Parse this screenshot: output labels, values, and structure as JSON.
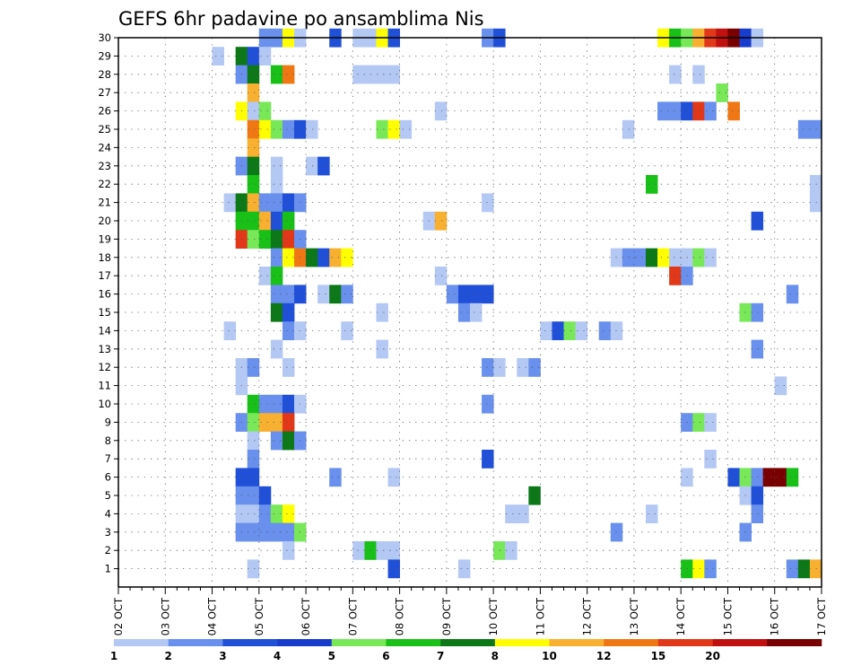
{
  "chart_data": {
    "type": "heatmap",
    "title": "GEFS 6hr padavine po ansamblima Nis",
    "xlabel": "",
    "ylabel": "",
    "x_tick_labels": [
      "02 OCT",
      "03 OCT",
      "04 OCT",
      "05 OCT",
      "06 OCT",
      "07 OCT",
      "08 OCT",
      "09 OCT",
      "10 OCT",
      "11 OCT",
      "12 OCT",
      "13 OCT",
      "14 OCT",
      "15 OCT",
      "16 OCT",
      "17 OCT"
    ],
    "y_tick_labels": [
      "1",
      "2",
      "3",
      "4",
      "5",
      "6",
      "7",
      "8",
      "9",
      "10",
      "11",
      "12",
      "13",
      "14",
      "15",
      "16",
      "17",
      "18",
      "19",
      "20",
      "21",
      "22",
      "23",
      "24",
      "25",
      "26",
      "27",
      "28",
      "29",
      "30"
    ],
    "x_range_steps": [
      0,
      60
    ],
    "y_range": [
      0,
      30
    ],
    "grid": true,
    "legend": "bottom colorbar",
    "colorbar": {
      "colors": [
        "#b4c8f4",
        "#6890ec",
        "#2050d8",
        "#183ccc",
        "#78e858",
        "#18c018",
        "#0c7818",
        "#ffff00",
        "#f8b030",
        "#f07814",
        "#e03818",
        "#c01010",
        "#780000"
      ],
      "labels": [
        "1",
        "2",
        "3",
        "4",
        "5",
        "6",
        "7",
        "8",
        "10",
        "12",
        "15",
        "20"
      ]
    },
    "cells_note": "each cell: [member 0-30, forecast step 0-60 (6h), color index into colorbar.colors]",
    "cells": [
      [
        30,
        12,
        1
      ],
      [
        30,
        13,
        1
      ],
      [
        30,
        14,
        7
      ],
      [
        30,
        15,
        0
      ],
      [
        30,
        18,
        2
      ],
      [
        30,
        20,
        0
      ],
      [
        30,
        21,
        0
      ],
      [
        30,
        22,
        7
      ],
      [
        30,
        23,
        2
      ],
      [
        30,
        31,
        1
      ],
      [
        30,
        32,
        2
      ],
      [
        30,
        46,
        7
      ],
      [
        30,
        47,
        5
      ],
      [
        30,
        48,
        4
      ],
      [
        30,
        49,
        8
      ],
      [
        30,
        50,
        10
      ],
      [
        30,
        51,
        11
      ],
      [
        30,
        52,
        12
      ],
      [
        30,
        53,
        3
      ],
      [
        30,
        54,
        0
      ],
      [
        29,
        8,
        0
      ],
      [
        29,
        10,
        6
      ],
      [
        29,
        11,
        2
      ],
      [
        29,
        12,
        0
      ],
      [
        28,
        10,
        1
      ],
      [
        28,
        11,
        6
      ],
      [
        28,
        13,
        5
      ],
      [
        28,
        14,
        9
      ],
      [
        28,
        20,
        0
      ],
      [
        28,
        21,
        0
      ],
      [
        28,
        22,
        0
      ],
      [
        28,
        23,
        0
      ],
      [
        28,
        47,
        0
      ],
      [
        28,
        49,
        0
      ],
      [
        27,
        11,
        8
      ],
      [
        27,
        51,
        4
      ],
      [
        26,
        10,
        7
      ],
      [
        26,
        11,
        0
      ],
      [
        26,
        12,
        4
      ],
      [
        26,
        27,
        0
      ],
      [
        26,
        46,
        1
      ],
      [
        26,
        47,
        1
      ],
      [
        26,
        48,
        2
      ],
      [
        26,
        49,
        10
      ],
      [
        26,
        50,
        1
      ],
      [
        26,
        52,
        9
      ],
      [
        25,
        11,
        9
      ],
      [
        25,
        12,
        7
      ],
      [
        25,
        13,
        4
      ],
      [
        25,
        14,
        1
      ],
      [
        25,
        15,
        2
      ],
      [
        25,
        16,
        0
      ],
      [
        25,
        22,
        4
      ],
      [
        25,
        23,
        7
      ],
      [
        25,
        24,
        0
      ],
      [
        25,
        43,
        0
      ],
      [
        25,
        58,
        1
      ],
      [
        25,
        59,
        1
      ],
      [
        24,
        11,
        8
      ],
      [
        23,
        10,
        1
      ],
      [
        23,
        11,
        6
      ],
      [
        23,
        13,
        0
      ],
      [
        23,
        16,
        0
      ],
      [
        23,
        17,
        2
      ],
      [
        22,
        11,
        5
      ],
      [
        22,
        13,
        0
      ],
      [
        22,
        45,
        5
      ],
      [
        22,
        59,
        0
      ],
      [
        21,
        9,
        0
      ],
      [
        21,
        10,
        6
      ],
      [
        21,
        11,
        8
      ],
      [
        21,
        12,
        1
      ],
      [
        21,
        13,
        1
      ],
      [
        21,
        14,
        2
      ],
      [
        21,
        15,
        1
      ],
      [
        21,
        31,
        0
      ],
      [
        21,
        59,
        0
      ],
      [
        20,
        10,
        5
      ],
      [
        20,
        11,
        5
      ],
      [
        20,
        12,
        8
      ],
      [
        20,
        13,
        2
      ],
      [
        20,
        14,
        5
      ],
      [
        20,
        26,
        0
      ],
      [
        20,
        27,
        8
      ],
      [
        20,
        54,
        2
      ],
      [
        19,
        10,
        10
      ],
      [
        19,
        11,
        4
      ],
      [
        19,
        12,
        5
      ],
      [
        19,
        13,
        6
      ],
      [
        19,
        14,
        10
      ],
      [
        19,
        15,
        1
      ],
      [
        18,
        13,
        1
      ],
      [
        18,
        14,
        7
      ],
      [
        18,
        15,
        9
      ],
      [
        18,
        16,
        6
      ],
      [
        18,
        17,
        2
      ],
      [
        18,
        18,
        8
      ],
      [
        18,
        19,
        7
      ],
      [
        18,
        42,
        0
      ],
      [
        18,
        43,
        1
      ],
      [
        18,
        44,
        1
      ],
      [
        18,
        45,
        6
      ],
      [
        18,
        46,
        7
      ],
      [
        18,
        47,
        0
      ],
      [
        18,
        48,
        0
      ],
      [
        18,
        49,
        4
      ],
      [
        18,
        50,
        0
      ],
      [
        17,
        12,
        0
      ],
      [
        17,
        13,
        5
      ],
      [
        17,
        27,
        0
      ],
      [
        17,
        47,
        10
      ],
      [
        17,
        48,
        1
      ],
      [
        16,
        13,
        1
      ],
      [
        16,
        14,
        1
      ],
      [
        16,
        15,
        2
      ],
      [
        16,
        17,
        0
      ],
      [
        16,
        18,
        6
      ],
      [
        16,
        19,
        1
      ],
      [
        16,
        28,
        1
      ],
      [
        16,
        29,
        2
      ],
      [
        16,
        30,
        2
      ],
      [
        16,
        31,
        2
      ],
      [
        16,
        57,
        1
      ],
      [
        15,
        13,
        6
      ],
      [
        15,
        14,
        2
      ],
      [
        15,
        22,
        0
      ],
      [
        15,
        29,
        1
      ],
      [
        15,
        30,
        0
      ],
      [
        15,
        53,
        4
      ],
      [
        15,
        54,
        1
      ],
      [
        14,
        9,
        0
      ],
      [
        14,
        14,
        1
      ],
      [
        14,
        15,
        0
      ],
      [
        14,
        19,
        0
      ],
      [
        14,
        36,
        0
      ],
      [
        14,
        37,
        2
      ],
      [
        14,
        38,
        4
      ],
      [
        14,
        39,
        0
      ],
      [
        14,
        41,
        1
      ],
      [
        14,
        42,
        0
      ],
      [
        13,
        13,
        0
      ],
      [
        13,
        22,
        0
      ],
      [
        13,
        54,
        1
      ],
      [
        12,
        10,
        0
      ],
      [
        12,
        11,
        1
      ],
      [
        12,
        14,
        0
      ],
      [
        12,
        31,
        1
      ],
      [
        12,
        32,
        0
      ],
      [
        12,
        34,
        0
      ],
      [
        12,
        35,
        1
      ],
      [
        11,
        10,
        0
      ],
      [
        11,
        56,
        0
      ],
      [
        10,
        11,
        5
      ],
      [
        10,
        12,
        1
      ],
      [
        10,
        13,
        1
      ],
      [
        10,
        14,
        2
      ],
      [
        10,
        15,
        0
      ],
      [
        10,
        31,
        1
      ],
      [
        9,
        10,
        1
      ],
      [
        9,
        11,
        4
      ],
      [
        9,
        12,
        8
      ],
      [
        9,
        13,
        8
      ],
      [
        9,
        14,
        10
      ],
      [
        9,
        48,
        1
      ],
      [
        9,
        49,
        4
      ],
      [
        9,
        50,
        0
      ],
      [
        8,
        11,
        0
      ],
      [
        8,
        13,
        1
      ],
      [
        8,
        14,
        6
      ],
      [
        8,
        15,
        1
      ],
      [
        7,
        11,
        1
      ],
      [
        7,
        31,
        2
      ],
      [
        7,
        50,
        0
      ],
      [
        6,
        10,
        2
      ],
      [
        6,
        11,
        2
      ],
      [
        6,
        18,
        1
      ],
      [
        6,
        23,
        0
      ],
      [
        6,
        52,
        2
      ],
      [
        6,
        53,
        4
      ],
      [
        6,
        54,
        1
      ],
      [
        6,
        55,
        12
      ],
      [
        6,
        56,
        12
      ],
      [
        6,
        57,
        5
      ],
      [
        6,
        48,
        0
      ],
      [
        5,
        10,
        1
      ],
      [
        5,
        11,
        1
      ],
      [
        5,
        12,
        2
      ],
      [
        5,
        35,
        6
      ],
      [
        5,
        53,
        0
      ],
      [
        5,
        54,
        2
      ],
      [
        4,
        10,
        0
      ],
      [
        4,
        11,
        0
      ],
      [
        4,
        12,
        1
      ],
      [
        4,
        13,
        4
      ],
      [
        4,
        14,
        7
      ],
      [
        4,
        33,
        0
      ],
      [
        4,
        34,
        0
      ],
      [
        4,
        45,
        0
      ],
      [
        4,
        54,
        1
      ],
      [
        3,
        10,
        1
      ],
      [
        3,
        11,
        1
      ],
      [
        3,
        12,
        1
      ],
      [
        3,
        13,
        1
      ],
      [
        3,
        14,
        1
      ],
      [
        3,
        15,
        4
      ],
      [
        3,
        42,
        1
      ],
      [
        3,
        53,
        1
      ],
      [
        2,
        14,
        0
      ],
      [
        2,
        20,
        0
      ],
      [
        2,
        21,
        5
      ],
      [
        2,
        22,
        0
      ],
      [
        2,
        23,
        0
      ],
      [
        2,
        32,
        4
      ],
      [
        2,
        33,
        0
      ],
      [
        1,
        11,
        0
      ],
      [
        1,
        23,
        2
      ],
      [
        1,
        29,
        0
      ],
      [
        1,
        48,
        5
      ],
      [
        1,
        49,
        7
      ],
      [
        1,
        50,
        1
      ],
      [
        1,
        57,
        1
      ],
      [
        1,
        58,
        6
      ],
      [
        1,
        59,
        8
      ]
    ]
  }
}
